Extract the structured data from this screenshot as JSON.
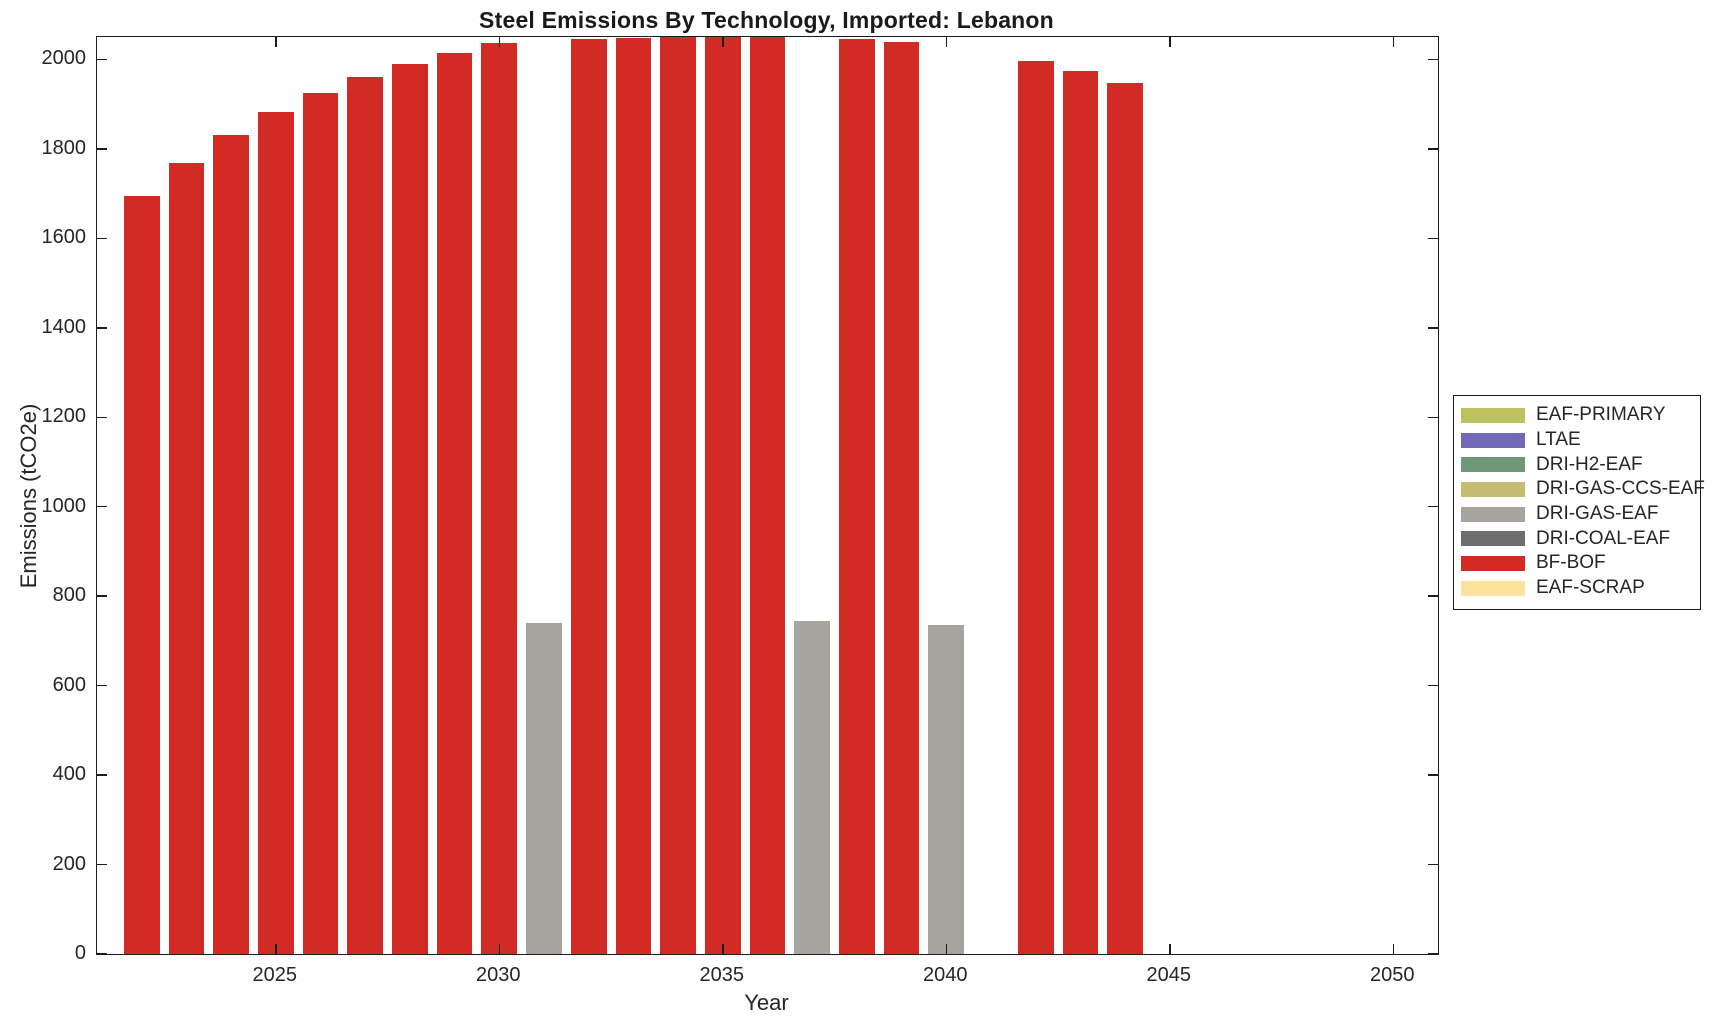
{
  "chart_data": {
    "type": "bar",
    "title": "Steel Emissions By Technology, Imported: Lebanon",
    "xlabel": "Year",
    "ylabel": "Emissions (tCO2e)",
    "xlim": [
      2021,
      2051
    ],
    "ylim": [
      0,
      2050
    ],
    "x_ticks": [
      2025,
      2030,
      2035,
      2040,
      2045,
      2050
    ],
    "y_ticks": [
      0,
      200,
      400,
      600,
      800,
      1000,
      1200,
      1400,
      1600,
      1800,
      2000
    ],
    "bar_width_years": 0.8,
    "grid": false,
    "legend_position": "right-outside",
    "legend": [
      {
        "label": "EAF-PRIMARY",
        "color": "#BDC25F"
      },
      {
        "label": "LTAE",
        "color": "#7168B6"
      },
      {
        "label": "DRI-H2-EAF",
        "color": "#6E9878"
      },
      {
        "label": "DRI-GAS-CCS-EAF",
        "color": "#C5BB72"
      },
      {
        "label": "DRI-GAS-EAF",
        "color": "#A7A39F"
      },
      {
        "label": "DRI-COAL-EAF",
        "color": "#6E6E6E"
      },
      {
        "label": "BF-BOF",
        "color": "#D22B26"
      },
      {
        "label": "EAF-SCRAP",
        "color": "#FBE39B"
      }
    ],
    "bars": [
      {
        "year": 2022,
        "series": "BF-BOF",
        "value": 1695
      },
      {
        "year": 2023,
        "series": "BF-BOF",
        "value": 1768
      },
      {
        "year": 2024,
        "series": "BF-BOF",
        "value": 1830
      },
      {
        "year": 2025,
        "series": "BF-BOF",
        "value": 1882
      },
      {
        "year": 2026,
        "series": "BF-BOF",
        "value": 1925
      },
      {
        "year": 2027,
        "series": "BF-BOF",
        "value": 1961
      },
      {
        "year": 2028,
        "series": "BF-BOF",
        "value": 1989
      },
      {
        "year": 2029,
        "series": "BF-BOF",
        "value": 2014
      },
      {
        "year": 2030,
        "series": "BF-BOF",
        "value": 2036
      },
      {
        "year": 2031,
        "series": "DRI-GAS-EAF",
        "value": 741
      },
      {
        "year": 2032,
        "series": "BF-BOF",
        "value": 2045
      },
      {
        "year": 2033,
        "series": "BF-BOF",
        "value": 2048
      },
      {
        "year": 2034,
        "series": "BF-BOF",
        "value": 2051
      },
      {
        "year": 2035,
        "series": "BF-BOF",
        "value": 2053
      },
      {
        "year": 2036,
        "series": "BF-BOF",
        "value": 2052
      },
      {
        "year": 2037,
        "series": "DRI-GAS-EAF",
        "value": 744
      },
      {
        "year": 2038,
        "series": "BF-BOF",
        "value": 2045
      },
      {
        "year": 2039,
        "series": "BF-BOF",
        "value": 2040
      },
      {
        "year": 2040,
        "series": "DRI-GAS-EAF",
        "value": 736
      },
      {
        "year": 2042,
        "series": "BF-BOF",
        "value": 1997
      },
      {
        "year": 2043,
        "series": "BF-BOF",
        "value": 1975
      },
      {
        "year": 2044,
        "series": "BF-BOF",
        "value": 1948
      }
    ]
  },
  "colors": {
    "axis": "#1c1c1c",
    "background": "#ffffff",
    "text": "#262626"
  }
}
